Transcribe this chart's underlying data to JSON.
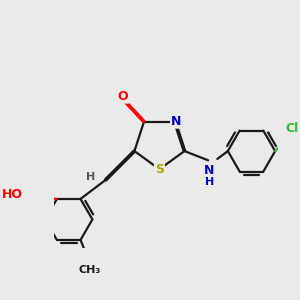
{
  "bg_color": "#eaeaea",
  "bond_color": "#1a1a1a",
  "atom_colors": {
    "O": "#ff0000",
    "N": "#0000cc",
    "S": "#aaaa00",
    "Cl": "#33bb33",
    "H": "#555555",
    "C": "#1a1a1a"
  }
}
